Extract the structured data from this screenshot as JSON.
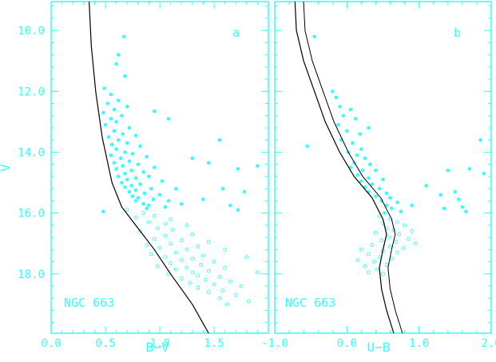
{
  "chart_data": [
    {
      "type": "scatter",
      "panel_letter": "a",
      "cluster_label": "NGC 663",
      "xlabel": "B−V",
      "ylabel": "V",
      "xlim": [
        0.0,
        2.0
      ],
      "ylim": [
        19.95,
        9.05
      ],
      "y_inverted": true,
      "x_ticks": [
        "0.0",
        "0.5",
        "1.0",
        "1.5"
      ],
      "x_tick_values": [
        0.0,
        0.5,
        1.0,
        1.5
      ],
      "y_ticks": [
        "10.0",
        "12.0",
        "14.0",
        "16.0",
        "18.0"
      ],
      "y_tick_values": [
        10.0,
        12.0,
        14.0,
        16.0,
        18.0
      ],
      "grid": false,
      "colors": {
        "frame": "#33ffff",
        "points": "#33ffff",
        "isochrone": "#000000"
      },
      "series": [
        {
          "marker": "filled-circle",
          "description_role": "members",
          "points": [
            [
              0.67,
              10.2
            ],
            [
              0.62,
              10.8
            ],
            [
              0.6,
              11.1
            ],
            [
              0.68,
              11.5
            ],
            [
              0.49,
              11.9
            ],
            [
              0.55,
              12.1
            ],
            [
              0.62,
              12.3
            ],
            [
              0.52,
              12.4
            ],
            [
              0.7,
              12.5
            ],
            [
              0.58,
              12.6
            ],
            [
              0.48,
              12.7
            ],
            [
              0.95,
              12.65
            ],
            [
              0.65,
              12.8
            ],
            [
              0.55,
              12.9
            ],
            [
              0.6,
              13.0
            ],
            [
              1.08,
              12.9
            ],
            [
              0.5,
              13.1
            ],
            [
              0.72,
              13.2
            ],
            [
              0.58,
              13.3
            ],
            [
              0.66,
              13.4
            ],
            [
              0.53,
              13.5
            ],
            [
              0.78,
              13.45
            ],
            [
              0.62,
              13.6
            ],
            [
              0.7,
              13.7
            ],
            [
              0.56,
              13.75
            ],
            [
              1.55,
              13.6
            ],
            [
              0.82,
              13.8
            ],
            [
              0.6,
              13.9
            ],
            [
              0.68,
              14.0
            ],
            [
              0.75,
              14.05
            ],
            [
              0.55,
              14.1
            ],
            [
              0.88,
              14.15
            ],
            [
              0.64,
              14.2
            ],
            [
              1.3,
              14.2
            ],
            [
              0.72,
              14.3
            ],
            [
              0.58,
              14.35
            ],
            [
              0.8,
              14.4
            ],
            [
              1.45,
              14.35
            ],
            [
              0.66,
              14.45
            ],
            [
              0.95,
              14.5
            ],
            [
              0.6,
              14.55
            ],
            [
              0.74,
              14.6
            ],
            [
              0.85,
              14.65
            ],
            [
              1.72,
              14.55
            ],
            [
              0.68,
              14.7
            ],
            [
              0.62,
              14.8
            ],
            [
              0.9,
              14.8
            ],
            [
              0.78,
              14.85
            ],
            [
              1.9,
              14.45
            ],
            [
              0.7,
              14.9
            ],
            [
              0.65,
              15.0
            ],
            [
              1.02,
              14.95
            ],
            [
              0.82,
              15.05
            ],
            [
              0.74,
              15.1
            ],
            [
              0.68,
              15.15
            ],
            [
              0.92,
              15.2
            ],
            [
              1.15,
              15.2
            ],
            [
              0.78,
              15.25
            ],
            [
              1.58,
              15.2
            ],
            [
              0.72,
              15.3
            ],
            [
              0.86,
              15.35
            ],
            [
              1.0,
              15.4
            ],
            [
              0.75,
              15.45
            ],
            [
              1.78,
              15.3
            ],
            [
              0.8,
              15.5
            ],
            [
              0.94,
              15.55
            ],
            [
              1.08,
              15.6
            ],
            [
              0.78,
              15.6
            ],
            [
              1.4,
              15.55
            ],
            [
              0.85,
              15.7
            ],
            [
              1.2,
              15.7
            ],
            [
              0.9,
              15.75
            ],
            [
              1.65,
              15.75
            ],
            [
              0.48,
              15.95
            ],
            [
              1.05,
              15.8
            ],
            [
              0.88,
              15.85
            ],
            [
              1.72,
              15.9
            ]
          ]
        },
        {
          "marker": "open-circle",
          "description_role": "field",
          "points": [
            [
              0.7,
              15.9
            ],
            [
              0.85,
              16.0
            ],
            [
              0.95,
              16.1
            ],
            [
              0.78,
              16.15
            ],
            [
              1.1,
              16.2
            ],
            [
              1.05,
              16.35
            ],
            [
              0.9,
              16.3
            ],
            [
              1.25,
              16.4
            ],
            [
              0.98,
              16.5
            ],
            [
              1.12,
              16.55
            ],
            [
              0.82,
              16.6
            ],
            [
              1.3,
              16.7
            ],
            [
              1.05,
              16.75
            ],
            [
              0.95,
              16.85
            ],
            [
              1.2,
              16.9
            ],
            [
              1.45,
              16.95
            ],
            [
              1.1,
              17.0
            ],
            [
              0.88,
              17.05
            ],
            [
              1.35,
              17.1
            ],
            [
              1.0,
              17.15
            ],
            [
              1.25,
              17.2
            ],
            [
              1.6,
              17.2
            ],
            [
              1.15,
              17.3
            ],
            [
              0.92,
              17.35
            ],
            [
              1.4,
              17.4
            ],
            [
              1.05,
              17.45
            ],
            [
              1.3,
              17.5
            ],
            [
              1.8,
              17.45
            ],
            [
              1.2,
              17.55
            ],
            [
              1.5,
              17.6
            ],
            [
              1.1,
              17.65
            ],
            [
              1.38,
              17.7
            ],
            [
              0.98,
              17.75
            ],
            [
              1.25,
              17.8
            ],
            [
              1.6,
              17.8
            ],
            [
              1.15,
              17.85
            ],
            [
              1.45,
              17.9
            ],
            [
              1.3,
              17.95
            ],
            [
              1.08,
              18.0
            ],
            [
              1.9,
              17.95
            ],
            [
              1.35,
              18.05
            ],
            [
              1.55,
              18.1
            ],
            [
              1.2,
              18.15
            ],
            [
              1.42,
              18.2
            ],
            [
              1.65,
              18.25
            ],
            [
              1.28,
              18.3
            ],
            [
              1.5,
              18.35
            ],
            [
              1.75,
              18.4
            ],
            [
              1.35,
              18.45
            ],
            [
              1.58,
              18.55
            ],
            [
              1.45,
              18.6
            ],
            [
              1.7,
              18.7
            ],
            [
              1.55,
              18.8
            ],
            [
              1.82,
              18.9
            ],
            [
              1.62,
              19.0
            ]
          ]
        }
      ],
      "isochrone": [
        [
          0.35,
          9.05
        ],
        [
          0.37,
          10.5
        ],
        [
          0.41,
          12.0
        ],
        [
          0.47,
          13.5
        ],
        [
          0.56,
          15.0
        ],
        [
          0.65,
          15.8
        ],
        [
          0.8,
          16.5
        ],
        [
          0.95,
          17.2
        ],
        [
          1.1,
          18.0
        ],
        [
          1.3,
          19.0
        ],
        [
          1.45,
          19.95
        ]
      ]
    },
    {
      "type": "scatter",
      "panel_letter": "b",
      "cluster_label": "NGC 663",
      "xlabel": "U−B",
      "ylabel": "",
      "xlim": [
        -1.0,
        2.0
      ],
      "ylim": [
        19.95,
        9.05
      ],
      "y_inverted": true,
      "x_ticks": [
        "-1.0",
        "0.0",
        "1.0",
        "2.0"
      ],
      "x_tick_values": [
        -1.0,
        0.0,
        1.0,
        2.0
      ],
      "y_tick_values": [
        10.0,
        12.0,
        14.0,
        16.0,
        18.0
      ],
      "grid": false,
      "colors": {
        "frame": "#33ffff",
        "points": "#33ffff",
        "isochrone": "#000000"
      },
      "series": [
        {
          "marker": "filled-circle",
          "description_role": "members",
          "points": [
            [
              -0.45,
              10.2
            ],
            [
              -0.2,
              12.0
            ],
            [
              -0.15,
              12.2
            ],
            [
              -0.1,
              12.5
            ],
            [
              0.05,
              12.6
            ],
            [
              -0.05,
              12.8
            ],
            [
              0.12,
              12.9
            ],
            [
              -0.12,
              13.1
            ],
            [
              0.0,
              13.3
            ],
            [
              0.18,
              13.4
            ],
            [
              0.3,
              13.2
            ],
            [
              -0.08,
              13.6
            ],
            [
              0.08,
              13.7
            ],
            [
              -0.55,
              13.8
            ],
            [
              0.2,
              13.9
            ],
            [
              1.85,
              13.6
            ],
            [
              0.02,
              14.0
            ],
            [
              0.14,
              14.1
            ],
            [
              0.25,
              14.2
            ],
            [
              0.1,
              14.35
            ],
            [
              0.32,
              14.4
            ],
            [
              0.05,
              14.5
            ],
            [
              0.22,
              14.6
            ],
            [
              0.4,
              14.6
            ],
            [
              1.7,
              14.55
            ],
            [
              0.15,
              14.75
            ],
            [
              0.3,
              14.85
            ],
            [
              0.5,
              14.9
            ],
            [
              0.2,
              14.95
            ],
            [
              1.4,
              14.6
            ],
            [
              1.9,
              14.7
            ],
            [
              0.35,
              15.05
            ],
            [
              0.25,
              15.15
            ],
            [
              0.45,
              15.2
            ],
            [
              1.1,
              15.1
            ],
            [
              0.3,
              15.3
            ],
            [
              0.55,
              15.35
            ],
            [
              1.5,
              15.3
            ],
            [
              0.4,
              15.45
            ],
            [
              0.6,
              15.5
            ],
            [
              1.3,
              15.4
            ],
            [
              0.48,
              15.6
            ],
            [
              0.7,
              15.65
            ],
            [
              1.55,
              15.55
            ],
            [
              0.55,
              15.75
            ],
            [
              0.9,
              15.75
            ],
            [
              1.6,
              15.8
            ],
            [
              0.62,
              15.85
            ],
            [
              1.35,
              15.85
            ],
            [
              0.75,
              15.95
            ],
            [
              1.65,
              15.95
            ],
            [
              0.52,
              16.0
            ]
          ]
        },
        {
          "marker": "open-circle",
          "description_role": "field",
          "points": [
            [
              0.45,
              16.1
            ],
            [
              0.6,
              16.2
            ],
            [
              0.7,
              16.3
            ],
            [
              0.5,
              16.35
            ],
            [
              0.8,
              16.4
            ],
            [
              0.55,
              16.5
            ],
            [
              0.65,
              16.55
            ],
            [
              0.9,
              16.6
            ],
            [
              0.4,
              16.65
            ],
            [
              0.72,
              16.7
            ],
            [
              0.58,
              16.8
            ],
            [
              0.85,
              16.85
            ],
            [
              0.48,
              16.9
            ],
            [
              0.68,
              16.95
            ],
            [
              0.95,
              17.0
            ],
            [
              0.35,
              17.05
            ],
            [
              0.6,
              17.1
            ],
            [
              0.78,
              17.15
            ],
            [
              0.2,
              17.2
            ],
            [
              0.5,
              17.25
            ],
            [
              0.7,
              17.3
            ],
            [
              0.3,
              17.35
            ],
            [
              0.45,
              17.45
            ],
            [
              0.62,
              17.5
            ],
            [
              0.15,
              17.55
            ],
            [
              0.38,
              17.6
            ],
            [
              0.55,
              17.7
            ],
            [
              0.25,
              17.75
            ],
            [
              0.42,
              17.85
            ],
            [
              0.3,
              17.95
            ],
            [
              0.5,
              18.0
            ]
          ]
        }
      ],
      "isochrone": [
        [
          -0.72,
          9.05
        ],
        [
          -0.7,
          10.0
        ],
        [
          -0.6,
          11.0
        ],
        [
          -0.45,
          12.0
        ],
        [
          -0.3,
          13.0
        ],
        [
          -0.1,
          14.0
        ],
        [
          0.1,
          14.8
        ],
        [
          0.35,
          15.5
        ],
        [
          0.5,
          16.2
        ],
        [
          0.55,
          16.7
        ],
        [
          0.5,
          17.2
        ],
        [
          0.45,
          17.8
        ],
        [
          0.48,
          18.5
        ],
        [
          0.55,
          19.2
        ],
        [
          0.65,
          19.95
        ]
      ],
      "isochrone_offset": 0.12
    }
  ]
}
